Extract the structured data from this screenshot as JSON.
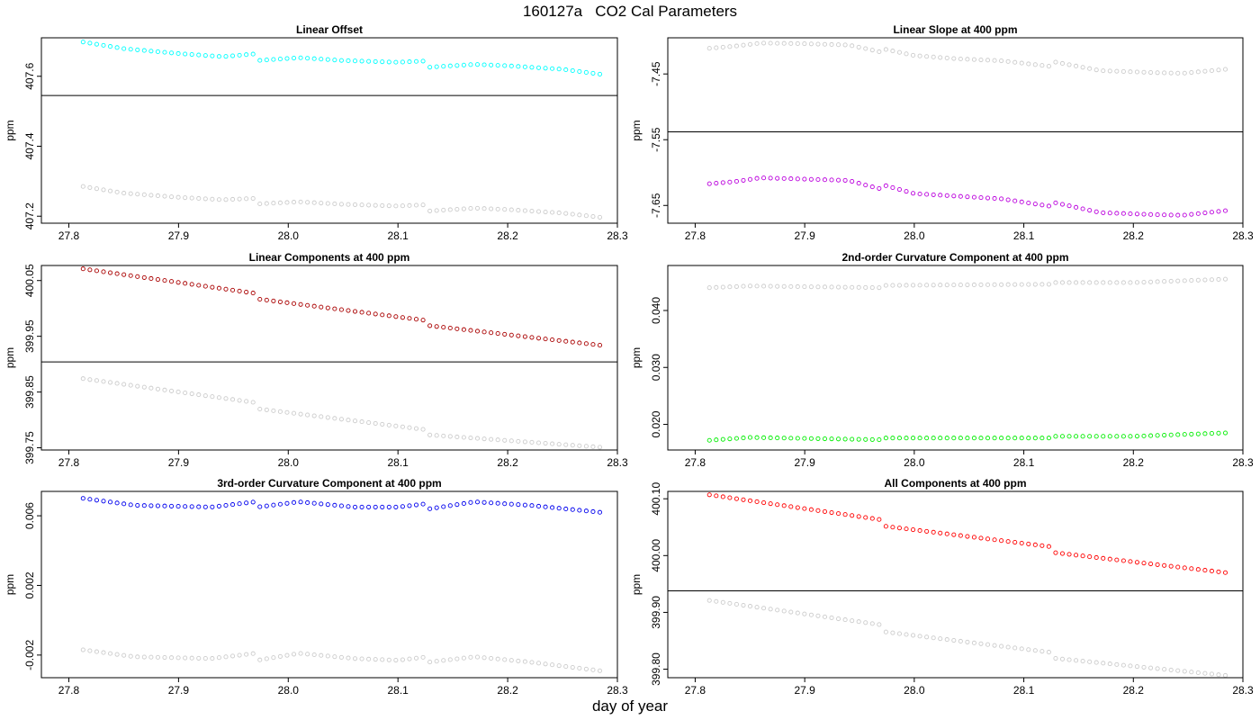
{
  "figure_title": "160127a   CO2 Cal Parameters",
  "xlabel": "day of year",
  "colors": {
    "background_points": "#cccccc",
    "reference_line": "#000000"
  },
  "chart_data": [
    {
      "type": "scatter",
      "title": "Linear Offset",
      "ylabel": "ppm",
      "xlim": [
        27.775,
        28.3
      ],
      "ylim": [
        407.18,
        407.71
      ],
      "xticks": [
        "27.8",
        "27.9",
        "28.0",
        "28.1",
        "28.2",
        "28.3"
      ],
      "yticks": [
        "407.2",
        "407.4",
        "407.6"
      ],
      "reference_line_y": 407.545,
      "series": [
        {
          "color": "#00ffff",
          "x_range": [
            27.813,
            28.284
          ],
          "y_knots": [
            [
              27.813,
              407.698
            ],
            [
              27.85,
              407.679
            ],
            [
              27.9,
              407.665
            ],
            [
              27.94,
              407.656
            ],
            [
              27.97,
              407.664
            ],
            [
              27.972,
              407.645
            ],
            [
              28.01,
              407.653
            ],
            [
              28.05,
              407.645
            ],
            [
              28.1,
              407.64
            ],
            [
              28.127,
              407.644
            ],
            [
              28.129,
              407.626
            ],
            [
              28.17,
              407.634
            ],
            [
              28.2,
              407.63
            ],
            [
              28.25,
              407.62
            ],
            [
              28.284,
              407.606
            ]
          ]
        },
        {
          "color": "#cccccc",
          "x_range": [
            27.813,
            28.284
          ],
          "y_knots": [
            [
              27.813,
              407.285
            ],
            [
              27.85,
              407.266
            ],
            [
              27.9,
              407.254
            ],
            [
              27.94,
              407.247
            ],
            [
              27.97,
              407.251
            ],
            [
              27.972,
              407.235
            ],
            [
              28.01,
              407.241
            ],
            [
              28.05,
              407.234
            ],
            [
              28.1,
              407.229
            ],
            [
              28.127,
              407.233
            ],
            [
              28.129,
              407.215
            ],
            [
              28.17,
              407.223
            ],
            [
              28.2,
              407.219
            ],
            [
              28.25,
              407.209
            ],
            [
              28.284,
              407.197
            ]
          ]
        }
      ]
    },
    {
      "type": "scatter",
      "title": "Linear Slope at 400 ppm",
      "ylabel": "ppm",
      "xlim": [
        27.775,
        28.3
      ],
      "ylim": [
        -7.677,
        -7.395
      ],
      "xticks": [
        "27.8",
        "27.9",
        "28.0",
        "28.1",
        "28.2",
        "28.3"
      ],
      "yticks": [
        "-7.45",
        "-7.55",
        "-7.65"
      ],
      "reference_line_y": -7.538,
      "series": [
        {
          "color": "#cccccc",
          "x_range": [
            27.813,
            28.284
          ],
          "y_knots": [
            [
              27.813,
              -7.411
            ],
            [
              27.835,
              -7.408
            ],
            [
              27.86,
              -7.403
            ],
            [
              27.9,
              -7.404
            ],
            [
              27.94,
              -7.406
            ],
            [
              27.96,
              -7.413
            ],
            [
              27.97,
              -7.417
            ],
            [
              27.972,
              -7.412
            ],
            [
              28.0,
              -7.422
            ],
            [
              28.04,
              -7.427
            ],
            [
              28.08,
              -7.43
            ],
            [
              28.127,
              -7.439
            ],
            [
              28.129,
              -7.432
            ],
            [
              28.17,
              -7.445
            ],
            [
              28.22,
              -7.448
            ],
            [
              28.245,
              -7.449
            ],
            [
              28.284,
              -7.443
            ]
          ]
        },
        {
          "color": "#bb00dd",
          "x_range": [
            27.813,
            28.284
          ],
          "y_knots": [
            [
              27.813,
              -7.617
            ],
            [
              27.835,
              -7.614
            ],
            [
              27.86,
              -7.608
            ],
            [
              27.9,
              -7.61
            ],
            [
              27.94,
              -7.612
            ],
            [
              27.96,
              -7.621
            ],
            [
              27.97,
              -7.625
            ],
            [
              27.972,
              -7.619
            ],
            [
              28.0,
              -7.632
            ],
            [
              28.04,
              -7.636
            ],
            [
              28.08,
              -7.64
            ],
            [
              28.127,
              -7.652
            ],
            [
              28.129,
              -7.646
            ],
            [
              28.17,
              -7.661
            ],
            [
              28.22,
              -7.664
            ],
            [
              28.245,
              -7.665
            ],
            [
              28.284,
              -7.658
            ]
          ]
        }
      ]
    },
    {
      "type": "scatter",
      "title": "Linear Components at 400 ppm",
      "ylabel": "ppm",
      "xlim": [
        27.775,
        28.3
      ],
      "ylim": [
        399.746,
        400.077
      ],
      "xticks": [
        "27.8",
        "27.9",
        "28.0",
        "28.1",
        "28.2",
        "28.3"
      ],
      "yticks": [
        "400.05",
        "399.95",
        "399.85",
        "399.75"
      ],
      "reference_line_y": 399.904,
      "series": [
        {
          "color": "#aa0000",
          "x_range": [
            27.813,
            28.284
          ],
          "y_knots": [
            [
              27.813,
              400.071
            ],
            [
              27.97,
              400.027
            ],
            [
              27.972,
              400.017
            ],
            [
              28.127,
              399.978
            ],
            [
              28.129,
              399.969
            ],
            [
              28.284,
              399.934
            ]
          ]
        },
        {
          "color": "#cccccc",
          "x_range": [
            27.813,
            28.284
          ],
          "y_knots": [
            [
              27.813,
              399.874
            ],
            [
              27.97,
              399.831
            ],
            [
              27.972,
              399.82
            ],
            [
              28.127,
              399.782
            ],
            [
              28.129,
              399.773
            ],
            [
              28.284,
              399.751
            ]
          ]
        }
      ]
    },
    {
      "type": "scatter",
      "title": "2nd-order Curvature Component at 400 ppm",
      "ylabel": "ppm",
      "xlim": [
        27.775,
        28.3
      ],
      "ylim": [
        0.0155,
        0.0479
      ],
      "xticks": [
        "27.8",
        "27.9",
        "28.0",
        "28.1",
        "28.2",
        "28.3"
      ],
      "yticks": [
        "0.040",
        "0.030",
        "0.020"
      ],
      "series": [
        {
          "color": "#cccccc",
          "x_range": [
            27.813,
            28.284
          ],
          "y_knots": [
            [
              27.813,
              0.044
            ],
            [
              27.85,
              0.0443
            ],
            [
              27.97,
              0.044
            ],
            [
              27.972,
              0.0444
            ],
            [
              28.05,
              0.0445
            ],
            [
              28.127,
              0.0446
            ],
            [
              28.129,
              0.0449
            ],
            [
              28.2,
              0.0449
            ],
            [
              28.284,
              0.0455
            ]
          ]
        },
        {
          "color": "#00ee00",
          "x_range": [
            27.813,
            28.284
          ],
          "y_knots": [
            [
              27.813,
              0.0172
            ],
            [
              27.85,
              0.0177
            ],
            [
              27.97,
              0.0173
            ],
            [
              27.972,
              0.0176
            ],
            [
              28.05,
              0.0176
            ],
            [
              28.127,
              0.0176
            ],
            [
              28.129,
              0.0179
            ],
            [
              28.2,
              0.0179
            ],
            [
              28.284,
              0.0185
            ]
          ]
        }
      ]
    },
    {
      "type": "scatter",
      "title": "3rd-order Curvature Component at 400 ppm",
      "ylabel": "ppm",
      "xlim": [
        27.775,
        28.3
      ],
      "ylim": [
        -0.0033,
        0.0074
      ],
      "xticks": [
        "27.8",
        "27.9",
        "28.0",
        "28.1",
        "28.2",
        "28.3"
      ],
      "yticks": [
        "0.006",
        "0.002",
        "-0.002"
      ],
      "series": [
        {
          "color": "#0000ee",
          "x_range": [
            27.813,
            28.284
          ],
          "y_knots": [
            [
              27.813,
              0.007
            ],
            [
              27.86,
              0.0066
            ],
            [
              27.93,
              0.0065
            ],
            [
              27.97,
              0.0068
            ],
            [
              27.972,
              0.0065
            ],
            [
              28.01,
              0.0068
            ],
            [
              28.06,
              0.0065
            ],
            [
              28.1,
              0.0065
            ],
            [
              28.127,
              0.0067
            ],
            [
              28.129,
              0.0064
            ],
            [
              28.17,
              0.0068
            ],
            [
              28.22,
              0.0066
            ],
            [
              28.284,
              0.0062
            ]
          ]
        },
        {
          "color": "#cccccc",
          "x_range": [
            27.813,
            28.284
          ],
          "y_knots": [
            [
              27.813,
              -0.0017
            ],
            [
              27.86,
              -0.0021
            ],
            [
              27.93,
              -0.0022
            ],
            [
              27.97,
              -0.0019
            ],
            [
              27.972,
              -0.0023
            ],
            [
              28.01,
              -0.0019
            ],
            [
              28.06,
              -0.0022
            ],
            [
              28.1,
              -0.0023
            ],
            [
              28.127,
              -0.0021
            ],
            [
              28.129,
              -0.0024
            ],
            [
              28.17,
              -0.0021
            ],
            [
              28.22,
              -0.0024
            ],
            [
              28.284,
              -0.0029
            ]
          ]
        }
      ]
    },
    {
      "type": "scatter",
      "title": "All Components at 400 ppm",
      "ylabel": "ppm",
      "xlim": [
        27.775,
        28.3
      ],
      "ylim": [
        399.785,
        400.113
      ],
      "xticks": [
        "27.8",
        "27.9",
        "28.0",
        "28.1",
        "28.2",
        "28.3"
      ],
      "yticks": [
        "400.10",
        "400.00",
        "399.90",
        "399.80"
      ],
      "reference_line_y": 399.938,
      "series": [
        {
          "color": "#ff0000",
          "x_range": [
            27.813,
            28.284
          ],
          "y_knots": [
            [
              27.813,
              400.107
            ],
            [
              27.97,
              400.063
            ],
            [
              27.972,
              400.052
            ],
            [
              28.127,
              400.015
            ],
            [
              28.129,
              400.005
            ],
            [
              28.284,
              399.97
            ]
          ]
        },
        {
          "color": "#cccccc",
          "x_range": [
            27.813,
            28.284
          ],
          "y_knots": [
            [
              27.813,
              399.921
            ],
            [
              27.97,
              399.878
            ],
            [
              27.972,
              399.866
            ],
            [
              28.127,
              399.829
            ],
            [
              28.129,
              399.819
            ],
            [
              28.284,
              399.789
            ]
          ]
        }
      ]
    }
  ]
}
